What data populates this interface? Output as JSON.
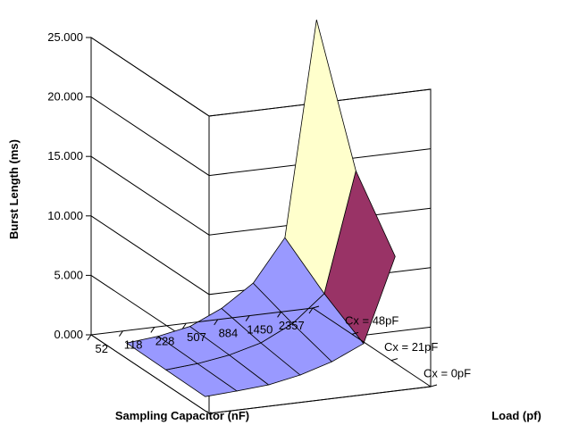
{
  "chart_data": {
    "type": "surface",
    "title": "",
    "xlabel": "Sampling Capacitor (nF)",
    "ylabel": "Burst Length (ms)",
    "zlabel": "Load (pf)",
    "zlim": [
      0,
      25
    ],
    "z_ticks": [
      "0.000",
      "5.000",
      "10.000",
      "15.000",
      "20.000",
      "25.000"
    ],
    "categories": [
      "52",
      "118",
      "228",
      "507",
      "884",
      "1450",
      "2357"
    ],
    "series": [
      {
        "name": "Cx = 0pF",
        "values": [
          0.25,
          0.5,
          1.0,
          2.2,
          4.0,
          7.5,
          25.5
        ]
      },
      {
        "name": "Cx = 21pF",
        "values": [
          0.2,
          0.4,
          0.8,
          1.5,
          2.8,
          5.0,
          15.0
        ]
      },
      {
        "name": "Cx = 48pF",
        "values": [
          0.15,
          0.3,
          0.5,
          1.0,
          1.8,
          3.0,
          10.0
        ]
      }
    ],
    "color_bands": [
      {
        "range": [
          0,
          5
        ],
        "color": "#9999ff"
      },
      {
        "range": [
          5,
          10
        ],
        "color": "#993366"
      },
      {
        "range": [
          10,
          15
        ],
        "color": "#ffffcc"
      },
      {
        "range": [
          15,
          20
        ],
        "color": "#ccffff"
      },
      {
        "range": [
          20,
          25
        ],
        "color": "#660066"
      }
    ]
  }
}
